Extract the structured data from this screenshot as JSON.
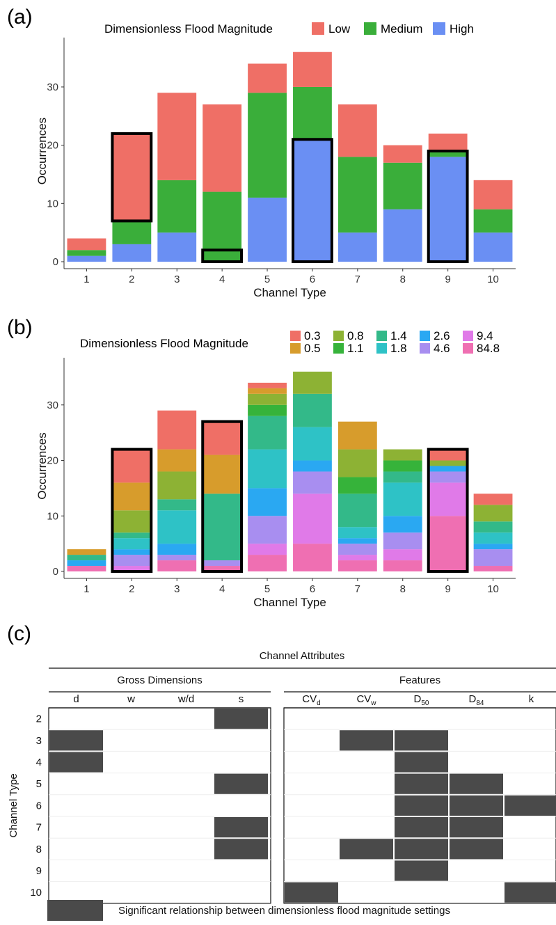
{
  "chart_data": [
    {
      "panel": "(a)",
      "type": "bar",
      "stacked": true,
      "legend": {
        "title": "Dimensionless Flood Magnitude",
        "position": "top"
      },
      "categories": [
        "1",
        "2",
        "3",
        "4",
        "5",
        "6",
        "7",
        "8",
        "9",
        "10"
      ],
      "series": [
        {
          "name": "High",
          "color": "#6a8ff3",
          "values": [
            1,
            3,
            5,
            0,
            11,
            21,
            5,
            9,
            18,
            5
          ]
        },
        {
          "name": "Medium",
          "color": "#3aae3a",
          "values": [
            1,
            4,
            9,
            12,
            18,
            9,
            13,
            8,
            1,
            4
          ]
        },
        {
          "name": "Low",
          "color": "#ef6f66",
          "values": [
            2,
            15,
            15,
            15,
            5,
            6,
            9,
            3,
            3,
            5
          ]
        }
      ],
      "highlighted": [
        {
          "category": "2",
          "from": 7,
          "to": 22
        },
        {
          "category": "4",
          "from": 0,
          "to": 2
        },
        {
          "category": "6",
          "from": 0,
          "to": 21
        },
        {
          "category": "9",
          "from": 0,
          "to": 19
        }
      ],
      "xlabel": "Channel Type",
      "ylabel": "Occurrences",
      "yticks": [
        0,
        10,
        20,
        30
      ],
      "ylim": [
        0,
        38
      ]
    },
    {
      "panel": "(b)",
      "type": "bar",
      "stacked": true,
      "legend": {
        "title": "Dimensionless Flood Magnitude",
        "position": "top"
      },
      "categories": [
        "1",
        "2",
        "3",
        "4",
        "5",
        "6",
        "7",
        "8",
        "9",
        "10"
      ],
      "series": [
        {
          "name": "84.8",
          "color": "#ef6fb2",
          "values": [
            1,
            0,
            2,
            1,
            3,
            5,
            2,
            2,
            10,
            1
          ]
        },
        {
          "name": "9.4",
          "color": "#e07ae8",
          "values": [
            0,
            1,
            0,
            0,
            2,
            9,
            1,
            2,
            6,
            0
          ]
        },
        {
          "name": "4.6",
          "color": "#a88ef0",
          "values": [
            0,
            2,
            1,
            1,
            5,
            4,
            2,
            3,
            2,
            3
          ]
        },
        {
          "name": "2.6",
          "color": "#2aa8f2",
          "values": [
            1,
            1,
            2,
            0,
            5,
            2,
            1,
            3,
            1,
            1
          ]
        },
        {
          "name": "1.8",
          "color": "#2ec2c6",
          "values": [
            0,
            2,
            6,
            0,
            7,
            6,
            2,
            6,
            0,
            2
          ]
        },
        {
          "name": "1.4",
          "color": "#33b989",
          "values": [
            1,
            1,
            2,
            12,
            6,
            6,
            6,
            2,
            0,
            2
          ]
        },
        {
          "name": "1.1",
          "color": "#36b33a",
          "values": [
            0,
            0,
            0,
            0,
            2,
            0,
            3,
            2,
            0,
            0
          ]
        },
        {
          "name": "0.8",
          "color": "#8db234",
          "values": [
            0,
            4,
            5,
            0,
            2,
            4,
            5,
            2,
            1,
            3
          ]
        },
        {
          "name": "0.5",
          "color": "#d79c2c",
          "values": [
            1,
            5,
            4,
            7,
            1,
            0,
            5,
            0,
            0,
            0
          ]
        },
        {
          "name": "0.3",
          "color": "#ef6f66",
          "values": [
            0,
            6,
            7,
            6,
            1,
            0,
            0,
            0,
            2,
            2
          ]
        }
      ],
      "highlighted": [
        {
          "category": "2",
          "from": 0,
          "to": 22
        },
        {
          "category": "4",
          "from": 0,
          "to": 27
        },
        {
          "category": "9",
          "from": 0,
          "to": 22
        }
      ],
      "xlabel": "Channel Type",
      "ylabel": "Occurrences",
      "yticks": [
        0,
        10,
        20,
        30
      ],
      "ylim": [
        0,
        38
      ]
    },
    {
      "panel": "(c)",
      "type": "table",
      "title": "Channel Attributes",
      "groups": [
        {
          "label": "Gross Dimensions",
          "columns": [
            "d",
            "w",
            "w/d",
            "s"
          ]
        },
        {
          "label": "Features",
          "columns": [
            "CV_d",
            "CV_w",
            "D_50",
            "D_84",
            "k"
          ]
        }
      ],
      "row_title": "Channel Type",
      "rows": [
        "2",
        "3",
        "4",
        "5",
        "6",
        "7",
        "8",
        "9",
        "10"
      ],
      "significant": {
        "2": [
          "s"
        ],
        "3": [
          "d",
          "CV_w",
          "D_50"
        ],
        "4": [
          "d",
          "D_50"
        ],
        "5": [
          "s",
          "D_50",
          "D_84"
        ],
        "6": [
          "D_50",
          "D_84",
          "k"
        ],
        "7": [
          "s",
          "D_50",
          "D_84"
        ],
        "8": [
          "s",
          "CV_w",
          "D_50",
          "D_84"
        ],
        "9": [
          "D_50"
        ],
        "10": [
          "CV_d",
          "k"
        ]
      },
      "legend_text": "Significant relationship between dimensionless flood magnitude settings",
      "shade_color": "#4a4a4a"
    }
  ]
}
